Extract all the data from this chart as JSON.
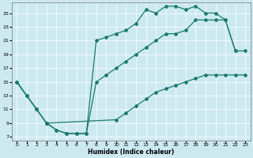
{
  "xlabel": "Humidex (Indice chaleur)",
  "xlim": [
    -0.5,
    23.5
  ],
  "ylim": [
    6.5,
    26.5
  ],
  "xticks": [
    0,
    1,
    2,
    3,
    4,
    5,
    6,
    7,
    8,
    9,
    10,
    11,
    12,
    13,
    14,
    15,
    16,
    17,
    18,
    19,
    20,
    21,
    22,
    23
  ],
  "yticks": [
    7,
    9,
    11,
    13,
    15,
    17,
    19,
    21,
    23,
    25
  ],
  "bg_color": "#cce9f0",
  "line_color": "#1a7a6e",
  "line1_x": [
    0,
    1,
    2,
    3,
    4,
    5,
    6,
    7,
    8,
    9,
    10,
    11,
    12,
    13,
    14,
    15,
    16,
    17,
    18,
    19,
    20,
    21,
    22
  ],
  "line1_y": [
    15,
    13,
    11,
    9,
    8,
    7.5,
    7.5,
    7.5,
    21,
    21.5,
    22,
    22.5,
    23.5,
    25.5,
    25,
    26,
    26,
    25.5,
    26,
    25,
    25,
    24,
    19.5
  ],
  "line2_x": [
    0,
    1,
    2,
    3,
    4,
    5,
    6,
    7,
    8,
    9,
    10,
    11,
    12,
    13,
    14,
    15,
    16,
    17,
    18,
    19,
    20,
    21,
    22,
    23
  ],
  "line2_y": [
    15,
    13,
    11,
    9,
    8,
    7.5,
    7.5,
    7.5,
    15,
    16,
    17,
    18,
    19,
    20,
    21,
    22,
    22,
    22.5,
    24,
    24,
    24,
    24,
    19.5,
    19.5
  ],
  "line3_x": [
    0,
    1,
    2,
    3,
    10,
    11,
    12,
    13,
    14,
    15,
    16,
    17,
    18,
    19,
    20,
    21,
    22,
    23
  ],
  "line3_y": [
    15,
    13,
    11,
    9,
    9.5,
    10.5,
    11.5,
    12.5,
    13.5,
    14,
    14.5,
    15,
    15.5,
    16,
    16,
    16,
    16,
    16
  ]
}
